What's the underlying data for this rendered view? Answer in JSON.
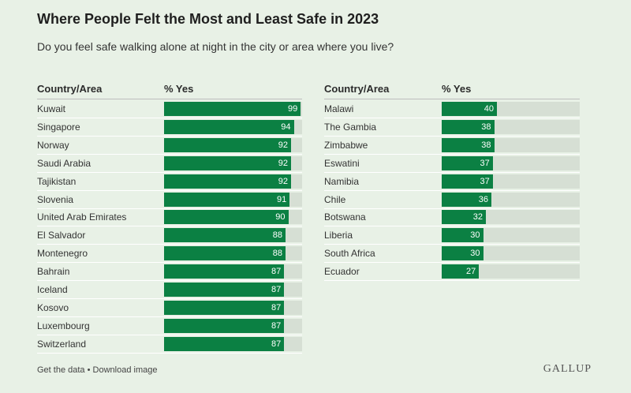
{
  "title": "Where People Felt the Most and Least Safe in 2023",
  "subtitle": "Do you feel safe walking alone at night in the city or area where you live?",
  "headers": {
    "country": "Country/Area",
    "pct": "% Yes"
  },
  "footer": {
    "get_data": "Get the data",
    "sep": "•",
    "download": "Download image"
  },
  "logo": "GALLUP",
  "colors": {
    "bar": "#0b8043",
    "track": "#d6dfd4",
    "background": "#e8f1e6"
  },
  "chart_data": [
    {
      "type": "bar",
      "categories": [
        "Kuwait",
        "Singapore",
        "Norway",
        "Saudi Arabia",
        "Tajikistan",
        "Slovenia",
        "United Arab Emirates",
        "El Salvador",
        "Montenegro",
        "Bahrain",
        "Iceland",
        "Kosovo",
        "Luxembourg",
        "Switzerland"
      ],
      "values": [
        99,
        94,
        92,
        92,
        92,
        91,
        90,
        88,
        88,
        87,
        87,
        87,
        87,
        87
      ],
      "ylim": [
        0,
        100
      ]
    },
    {
      "type": "bar",
      "categories": [
        "Malawi",
        "The Gambia",
        "Zimbabwe",
        "Eswatini",
        "Namibia",
        "Chile",
        "Botswana",
        "Liberia",
        "South Africa",
        "Ecuador"
      ],
      "values": [
        40,
        38,
        38,
        37,
        37,
        36,
        32,
        30,
        30,
        27
      ],
      "ylim": [
        0,
        100
      ]
    }
  ]
}
